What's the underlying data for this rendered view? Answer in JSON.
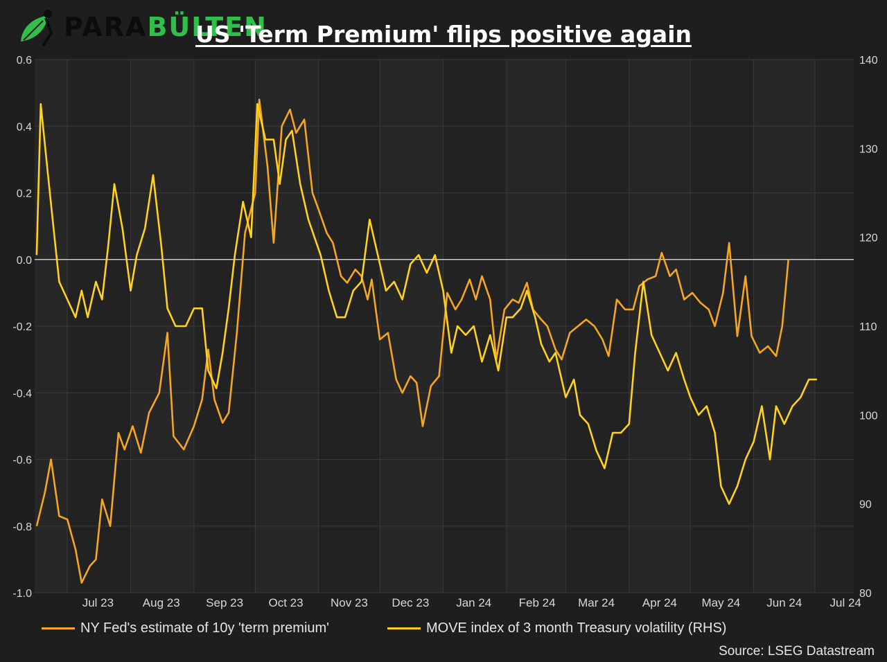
{
  "logo": {
    "brand_part1": "PARA",
    "brand_part2": "BÜLTEN"
  },
  "colors": {
    "background": "#1e1e1e",
    "plot_bg": "#222222",
    "band_bg": "#272727",
    "term_premium": "#f5a623",
    "move_index": "#ffd21f",
    "zero_line": "#e6e6e6",
    "grid": "#3a3a3a",
    "logo_green": "#2fbf4a"
  },
  "chart_data": {
    "type": "line",
    "title": "US 'Term Premium' flips positive again",
    "source": "Source: LSEG Datastream",
    "x_tick_labels": [
      "Jul 23",
      "Aug 23",
      "Sep 23",
      "Oct 23",
      "Nov 23",
      "Dec 23",
      "Jan 24",
      "Feb 24",
      "Mar 24",
      "Apr 24",
      "May 24",
      "Jun 24",
      "Jul 24"
    ],
    "x_range": [
      "2023-06-15",
      "2024-07-20"
    ],
    "y_left": {
      "ticks": [
        0.6,
        0.4,
        0.2,
        0.0,
        -0.2,
        -0.4,
        -0.6,
        -0.8,
        -1.0
      ],
      "range": [
        -1.0,
        0.6
      ]
    },
    "y_right": {
      "ticks": [
        140,
        130,
        120,
        110,
        100,
        90,
        80
      ],
      "range": [
        80,
        140
      ]
    },
    "grid": true,
    "legend_position": "bottom",
    "series": [
      {
        "name": "NY Fed's estimate of 10y 'term premium'",
        "axis": "left",
        "points": [
          [
            "2023-06-16",
            -0.8
          ],
          [
            "2023-06-20",
            -0.7
          ],
          [
            "2023-06-23",
            -0.6
          ],
          [
            "2023-06-27",
            -0.77
          ],
          [
            "2023-07-01",
            -0.78
          ],
          [
            "2023-07-05",
            -0.87
          ],
          [
            "2023-07-08",
            -0.97
          ],
          [
            "2023-07-12",
            -0.92
          ],
          [
            "2023-07-15",
            -0.9
          ],
          [
            "2023-07-18",
            -0.72
          ],
          [
            "2023-07-22",
            -0.8
          ],
          [
            "2023-07-26",
            -0.52
          ],
          [
            "2023-07-29",
            -0.57
          ],
          [
            "2023-08-02",
            -0.5
          ],
          [
            "2023-08-06",
            -0.58
          ],
          [
            "2023-08-10",
            -0.46
          ],
          [
            "2023-08-15",
            -0.4
          ],
          [
            "2023-08-19",
            -0.22
          ],
          [
            "2023-08-22",
            -0.53
          ],
          [
            "2023-08-27",
            -0.57
          ],
          [
            "2023-09-01",
            -0.5
          ],
          [
            "2023-09-05",
            -0.42
          ],
          [
            "2023-09-08",
            -0.27
          ],
          [
            "2023-09-11",
            -0.42
          ],
          [
            "2023-09-15",
            -0.49
          ],
          [
            "2023-09-18",
            -0.46
          ],
          [
            "2023-09-22",
            -0.22
          ],
          [
            "2023-09-26",
            0.08
          ],
          [
            "2023-10-01",
            0.2
          ],
          [
            "2023-10-03",
            0.48
          ],
          [
            "2023-10-07",
            0.28
          ],
          [
            "2023-10-10",
            0.05
          ],
          [
            "2023-10-14",
            0.4
          ],
          [
            "2023-10-18",
            0.45
          ],
          [
            "2023-10-21",
            0.38
          ],
          [
            "2023-10-25",
            0.42
          ],
          [
            "2023-10-29",
            0.2
          ],
          [
            "2023-11-01",
            0.15
          ],
          [
            "2023-11-05",
            0.08
          ],
          [
            "2023-11-08",
            0.05
          ],
          [
            "2023-11-12",
            -0.05
          ],
          [
            "2023-11-15",
            -0.07
          ],
          [
            "2023-11-19",
            -0.03
          ],
          [
            "2023-11-22",
            -0.05
          ],
          [
            "2023-11-25",
            -0.12
          ],
          [
            "2023-11-27",
            -0.06
          ],
          [
            "2023-12-01",
            -0.24
          ],
          [
            "2023-12-05",
            -0.22
          ],
          [
            "2023-12-09",
            -0.36
          ],
          [
            "2023-12-12",
            -0.4
          ],
          [
            "2023-12-16",
            -0.35
          ],
          [
            "2023-12-19",
            -0.37
          ],
          [
            "2023-12-22",
            -0.5
          ],
          [
            "2023-12-26",
            -0.38
          ],
          [
            "2023-12-30",
            -0.35
          ],
          [
            "2024-01-03",
            -0.1
          ],
          [
            "2024-01-07",
            -0.15
          ],
          [
            "2024-01-10",
            -0.12
          ],
          [
            "2024-01-14",
            -0.06
          ],
          [
            "2024-01-17",
            -0.12
          ],
          [
            "2024-01-20",
            -0.05
          ],
          [
            "2024-01-24",
            -0.12
          ],
          [
            "2024-01-27",
            -0.3
          ],
          [
            "2024-01-31",
            -0.15
          ],
          [
            "2024-02-04",
            -0.12
          ],
          [
            "2024-02-07",
            -0.13
          ],
          [
            "2024-02-11",
            -0.07
          ],
          [
            "2024-02-14",
            -0.15
          ],
          [
            "2024-02-18",
            -0.18
          ],
          [
            "2024-02-21",
            -0.2
          ],
          [
            "2024-02-25",
            -0.27
          ],
          [
            "2024-02-28",
            -0.3
          ],
          [
            "2024-03-03",
            -0.22
          ],
          [
            "2024-03-07",
            -0.2
          ],
          [
            "2024-03-11",
            -0.18
          ],
          [
            "2024-03-15",
            -0.2
          ],
          [
            "2024-03-19",
            -0.24
          ],
          [
            "2024-03-22",
            -0.29
          ],
          [
            "2024-03-26",
            -0.12
          ],
          [
            "2024-03-30",
            -0.15
          ],
          [
            "2024-04-03",
            -0.15
          ],
          [
            "2024-04-06",
            -0.08
          ],
          [
            "2024-04-10",
            -0.06
          ],
          [
            "2024-04-14",
            -0.05
          ],
          [
            "2024-04-17",
            0.02
          ],
          [
            "2024-04-21",
            -0.05
          ],
          [
            "2024-04-24",
            -0.03
          ],
          [
            "2024-04-28",
            -0.12
          ],
          [
            "2024-05-02",
            -0.1
          ],
          [
            "2024-05-06",
            -0.13
          ],
          [
            "2024-05-10",
            -0.15
          ],
          [
            "2024-05-13",
            -0.2
          ],
          [
            "2024-05-17",
            -0.1
          ],
          [
            "2024-05-20",
            0.05
          ],
          [
            "2024-05-24",
            -0.23
          ],
          [
            "2024-05-28",
            -0.05
          ],
          [
            "2024-05-31",
            -0.23
          ],
          [
            "2024-06-04",
            -0.28
          ],
          [
            "2024-06-08",
            -0.26
          ],
          [
            "2024-06-12",
            -0.29
          ],
          [
            "2024-06-15",
            -0.2
          ],
          [
            "2024-06-18",
            0.0
          ]
        ]
      },
      {
        "name": "MOVE index of 3 month Treasury volatility (RHS)",
        "axis": "right",
        "points": [
          [
            "2023-06-16",
            118
          ],
          [
            "2023-06-18",
            135
          ],
          [
            "2023-06-22",
            126
          ],
          [
            "2023-06-27",
            115
          ],
          [
            "2023-07-01",
            113
          ],
          [
            "2023-07-05",
            111
          ],
          [
            "2023-07-08",
            114
          ],
          [
            "2023-07-11",
            111
          ],
          [
            "2023-07-15",
            115
          ],
          [
            "2023-07-18",
            113
          ],
          [
            "2023-07-21",
            119
          ],
          [
            "2023-07-24",
            126
          ],
          [
            "2023-07-28",
            121
          ],
          [
            "2023-08-01",
            114
          ],
          [
            "2023-08-04",
            118
          ],
          [
            "2023-08-08",
            121
          ],
          [
            "2023-08-12",
            127
          ],
          [
            "2023-08-16",
            119
          ],
          [
            "2023-08-19",
            112
          ],
          [
            "2023-08-23",
            110
          ],
          [
            "2023-08-28",
            110
          ],
          [
            "2023-09-01",
            112
          ],
          [
            "2023-09-05",
            112
          ],
          [
            "2023-09-08",
            105
          ],
          [
            "2023-09-12",
            103
          ],
          [
            "2023-09-15",
            107
          ],
          [
            "2023-09-18",
            112
          ],
          [
            "2023-09-21",
            118
          ],
          [
            "2023-09-25",
            124
          ],
          [
            "2023-09-29",
            120
          ],
          [
            "2023-10-02",
            135
          ],
          [
            "2023-10-06",
            131
          ],
          [
            "2023-10-10",
            131
          ],
          [
            "2023-10-13",
            126
          ],
          [
            "2023-10-16",
            131
          ],
          [
            "2023-10-19",
            132
          ],
          [
            "2023-10-23",
            126
          ],
          [
            "2023-10-27",
            122
          ],
          [
            "2023-10-30",
            120
          ],
          [
            "2023-11-02",
            118
          ],
          [
            "2023-11-06",
            114
          ],
          [
            "2023-11-10",
            111
          ],
          [
            "2023-11-14",
            111
          ],
          [
            "2023-11-18",
            114
          ],
          [
            "2023-11-22",
            115
          ],
          [
            "2023-11-26",
            122
          ],
          [
            "2023-11-30",
            118
          ],
          [
            "2023-12-04",
            114
          ],
          [
            "2023-12-08",
            115
          ],
          [
            "2023-12-12",
            113
          ],
          [
            "2023-12-16",
            117
          ],
          [
            "2023-12-20",
            118
          ],
          [
            "2023-12-24",
            116
          ],
          [
            "2023-12-28",
            118
          ],
          [
            "2024-01-01",
            114
          ],
          [
            "2024-01-05",
            107
          ],
          [
            "2024-01-08",
            110
          ],
          [
            "2024-01-12",
            109
          ],
          [
            "2024-01-16",
            110
          ],
          [
            "2024-01-20",
            106
          ],
          [
            "2024-01-24",
            109
          ],
          [
            "2024-01-28",
            105
          ],
          [
            "2024-02-01",
            111
          ],
          [
            "2024-02-04",
            111
          ],
          [
            "2024-02-08",
            112
          ],
          [
            "2024-02-11",
            114
          ],
          [
            "2024-02-15",
            111
          ],
          [
            "2024-02-18",
            108
          ],
          [
            "2024-02-22",
            106
          ],
          [
            "2024-02-25",
            107
          ],
          [
            "2024-03-01",
            102
          ],
          [
            "2024-03-05",
            104
          ],
          [
            "2024-03-08",
            100
          ],
          [
            "2024-03-12",
            99
          ],
          [
            "2024-03-16",
            96
          ],
          [
            "2024-03-20",
            94
          ],
          [
            "2024-03-24",
            98
          ],
          [
            "2024-03-28",
            98
          ],
          [
            "2024-04-01",
            99
          ],
          [
            "2024-04-04",
            107
          ],
          [
            "2024-04-08",
            115
          ],
          [
            "2024-04-12",
            109
          ],
          [
            "2024-04-16",
            107
          ],
          [
            "2024-04-20",
            105
          ],
          [
            "2024-04-24",
            107
          ],
          [
            "2024-04-28",
            104
          ],
          [
            "2024-05-01",
            102
          ],
          [
            "2024-05-05",
            100
          ],
          [
            "2024-05-09",
            101
          ],
          [
            "2024-05-13",
            98
          ],
          [
            "2024-05-16",
            92
          ],
          [
            "2024-05-20",
            90
          ],
          [
            "2024-05-24",
            92
          ],
          [
            "2024-05-28",
            95
          ],
          [
            "2024-06-01",
            97
          ],
          [
            "2024-06-05",
            101
          ],
          [
            "2024-06-09",
            95
          ],
          [
            "2024-06-12",
            101
          ],
          [
            "2024-06-16",
            99
          ],
          [
            "2024-06-20",
            101
          ],
          [
            "2024-06-24",
            102
          ],
          [
            "2024-06-28",
            104
          ],
          [
            "2024-07-02",
            104
          ]
        ]
      }
    ]
  }
}
